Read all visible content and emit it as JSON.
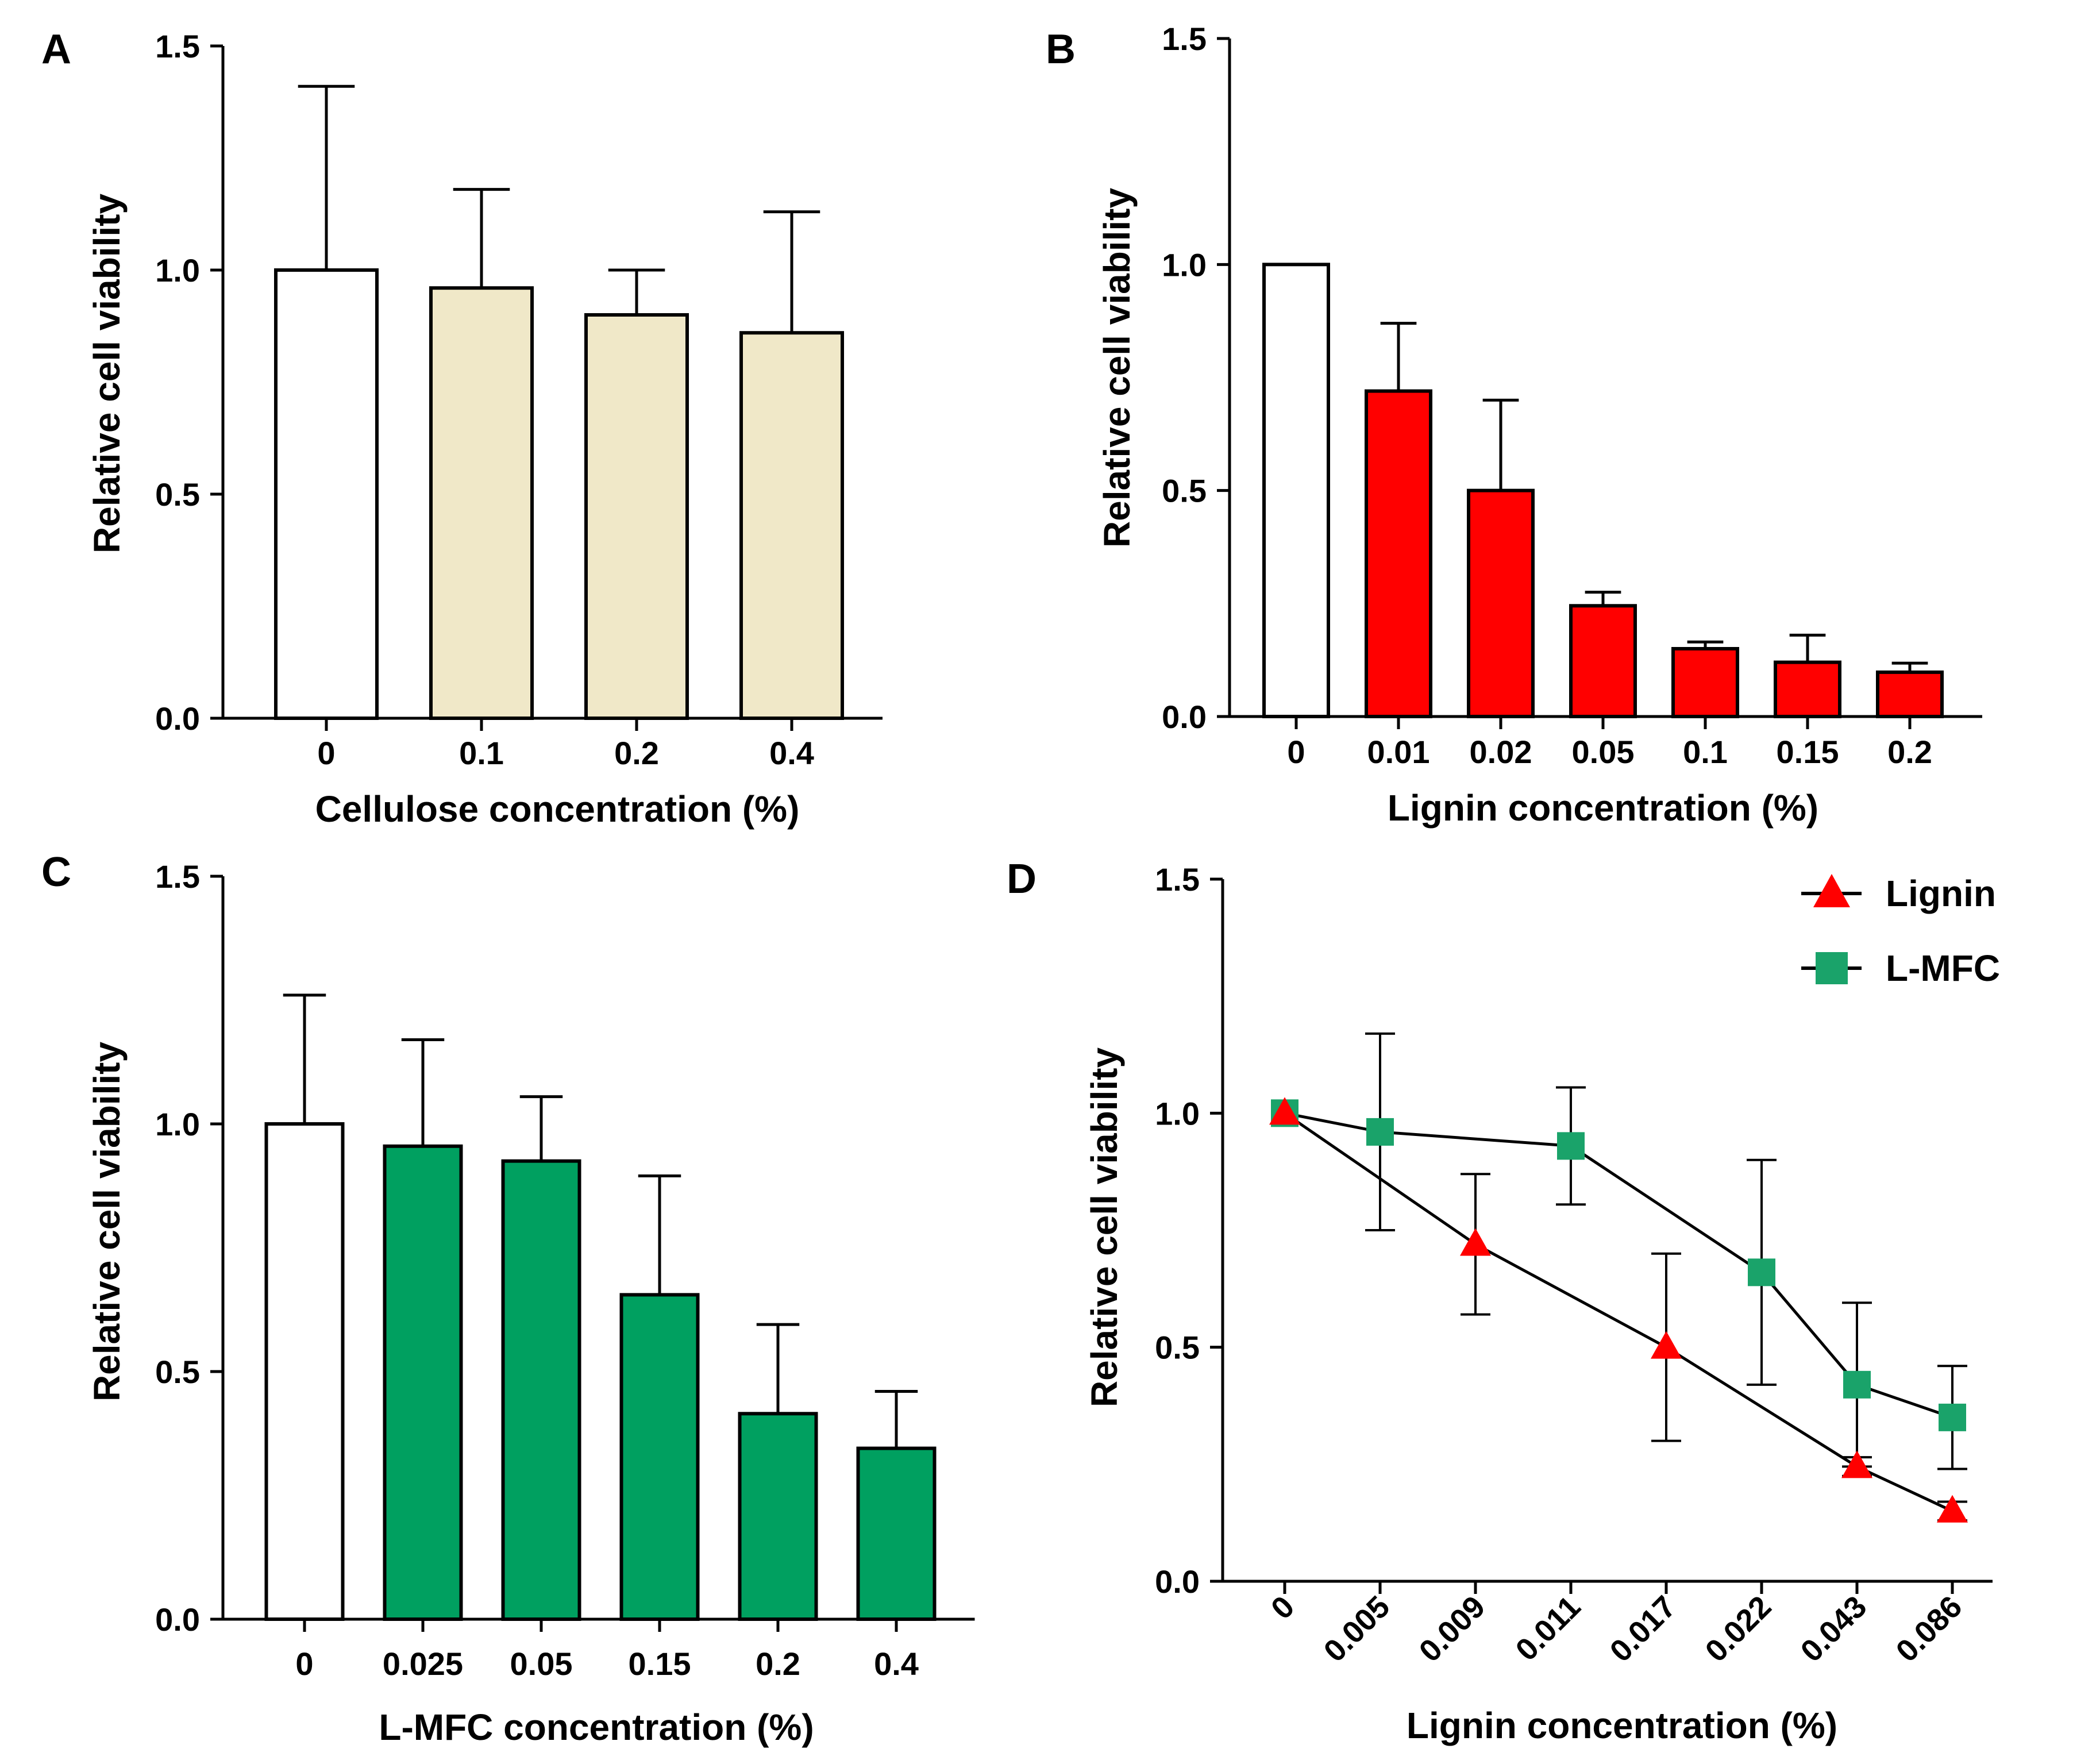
{
  "colors": {
    "axis": "#000000",
    "control_bar": "#ffffff",
    "cellulose_bar": "#f0e8c8",
    "lignin_bar": "#ff0000",
    "lmfc_bar": "#00a060",
    "lignin_marker": "#ff0000",
    "lmfc_marker": "#1aa36a"
  },
  "chart_data": [
    {
      "panel": "A",
      "type": "bar",
      "xlabel": "Cellulose concentration (%)",
      "ylabel": "Relative cell viability",
      "ylim": [
        0,
        1.5
      ],
      "yticks": [
        "0.0",
        "0.5",
        "1.0",
        "1.5"
      ],
      "categories": [
        "0",
        "0.1",
        "0.2",
        "0.4"
      ],
      "values": [
        1.0,
        0.96,
        0.9,
        0.86
      ],
      "errors": [
        0.41,
        0.22,
        0.1,
        0.27
      ],
      "fills": [
        "control_bar",
        "cellulose_bar",
        "cellulose_bar",
        "cellulose_bar"
      ]
    },
    {
      "panel": "B",
      "type": "bar",
      "xlabel": "Lignin concentration (%)",
      "ylabel": "Relative cell viability",
      "ylim": [
        0,
        1.5
      ],
      "yticks": [
        "0.0",
        "0.5",
        "1.0",
        "1.5"
      ],
      "categories": [
        "0",
        "0.01",
        "0.02",
        "0.05",
        "0.1",
        "0.15",
        "0.2"
      ],
      "values": [
        1.0,
        0.72,
        0.5,
        0.245,
        0.15,
        0.12,
        0.098
      ],
      "errors": [
        0,
        0.15,
        0.2,
        0.03,
        0.015,
        0.06,
        0.02
      ],
      "fills": [
        "control_bar",
        "lignin_bar",
        "lignin_bar",
        "lignin_bar",
        "lignin_bar",
        "lignin_bar",
        "lignin_bar"
      ]
    },
    {
      "panel": "C",
      "type": "bar",
      "xlabel": "L-MFC concentration (%)",
      "ylabel": "Relative cell viability",
      "ylim": [
        0,
        1.5
      ],
      "yticks": [
        "0.0",
        "0.5",
        "1.0",
        "1.5"
      ],
      "categories": [
        "0",
        "0.025",
        "0.05",
        "0.15",
        "0.2",
        "0.4"
      ],
      "values": [
        1.0,
        0.955,
        0.925,
        0.655,
        0.415,
        0.345
      ],
      "errors": [
        0.26,
        0.215,
        0.13,
        0.24,
        0.18,
        0.115
      ],
      "fills": [
        "control_bar",
        "lmfc_bar",
        "lmfc_bar",
        "lmfc_bar",
        "lmfc_bar",
        "lmfc_bar"
      ]
    },
    {
      "panel": "D",
      "type": "line",
      "xlabel": "Lignin concentration (%)",
      "ylabel": "Relative cell viability",
      "ylim": [
        0,
        1.5
      ],
      "yticks": [
        "0.0",
        "0.5",
        "1.0",
        "1.5"
      ],
      "categories": [
        "0",
        "0.005",
        "0.009",
        "0.011",
        "0.017",
        "0.022",
        "0.043",
        "0.086"
      ],
      "series": [
        {
          "name": "Lignin",
          "marker": "triangle",
          "color": "lignin_marker",
          "points": [
            {
              "x": "0",
              "y": 1.0,
              "err": 0
            },
            {
              "x": "0.009",
              "y": 0.72,
              "err": 0.15
            },
            {
              "x": "0.017",
              "y": 0.5,
              "err": 0.2
            },
            {
              "x": "0.043",
              "y": 0.245,
              "err": 0.02
            },
            {
              "x": "0.086",
              "y": 0.15,
              "err": 0.02
            }
          ]
        },
        {
          "name": "L-MFC",
          "marker": "square",
          "color": "lmfc_marker",
          "points": [
            {
              "x": "0",
              "y": 1.0,
              "err": 0
            },
            {
              "x": "0.005",
              "y": 0.96,
              "err": 0.21
            },
            {
              "x": "0.011",
              "y": 0.93,
              "err": 0.125
            },
            {
              "x": "0.022",
              "y": 0.66,
              "err": 0.24
            },
            {
              "x": "0.043",
              "y": 0.42,
              "err": 0.175
            },
            {
              "x": "0.086",
              "y": 0.35,
              "err": 0.11
            }
          ]
        }
      ],
      "legend": "top-right"
    }
  ]
}
